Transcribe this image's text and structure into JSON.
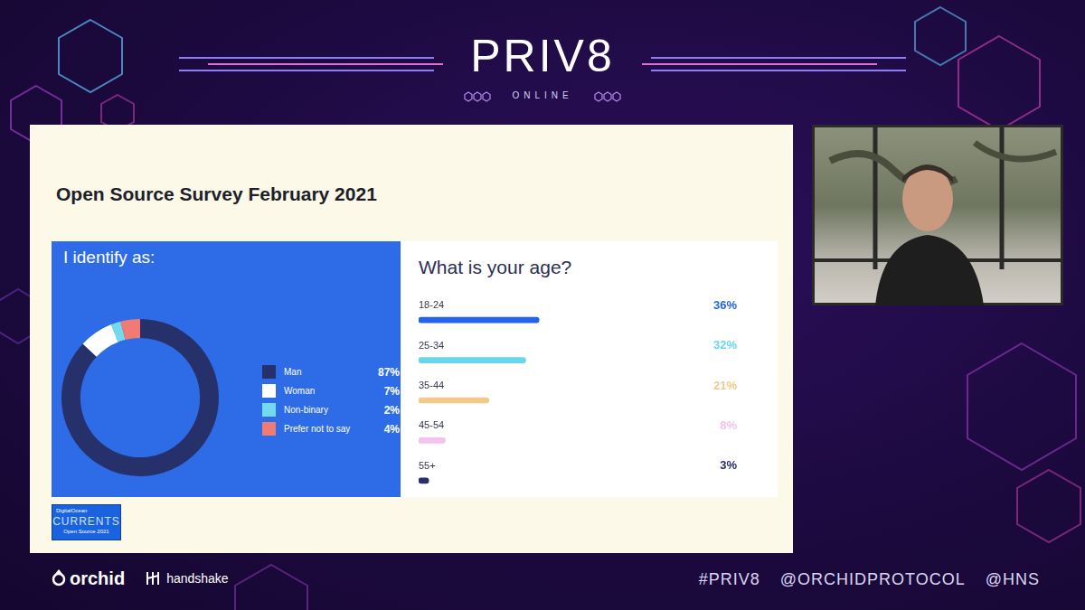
{
  "header": {
    "title": "PRIV8",
    "subtitle": "ONLINE"
  },
  "slide": {
    "title": "Open Source Survey February 2021",
    "source_logo": {
      "brand": "DigitalOcean",
      "title": "CURRENTS",
      "subtitle": "Open Source 2021"
    }
  },
  "chart_data": [
    {
      "type": "doughnut",
      "title": "I identify as:",
      "categories": [
        "Man",
        "Woman",
        "Non-binary",
        "Prefer not to say"
      ],
      "values": [
        87,
        7,
        2,
        4
      ],
      "value_labels": [
        "87%",
        "7%",
        "2%",
        "4%"
      ],
      "colors": [
        "#26306a",
        "#ffffff",
        "#72d9ef",
        "#ef7b74"
      ],
      "legend": "right"
    },
    {
      "type": "bar",
      "title": "What is your age?",
      "orientation": "horizontal",
      "categories": [
        "18-24",
        "25-34",
        "35-44",
        "45-54",
        "55+"
      ],
      "values": [
        36,
        32,
        21,
        8,
        3
      ],
      "value_labels": [
        "36%",
        "32%",
        "21%",
        "8%",
        "3%"
      ],
      "colors": [
        "#2563eb",
        "#67d6ef",
        "#f1c98a",
        "#f3c3ee",
        "#26306a"
      ],
      "xlim": [
        0,
        100
      ],
      "grid": false,
      "tick_labels": false,
      "data_labels": true
    }
  ],
  "footer": {
    "logos": [
      "orchid",
      "handshake"
    ],
    "tags": [
      "#PRIV8",
      "@ORCHIDPROTOCOL",
      "@HNS"
    ]
  }
}
